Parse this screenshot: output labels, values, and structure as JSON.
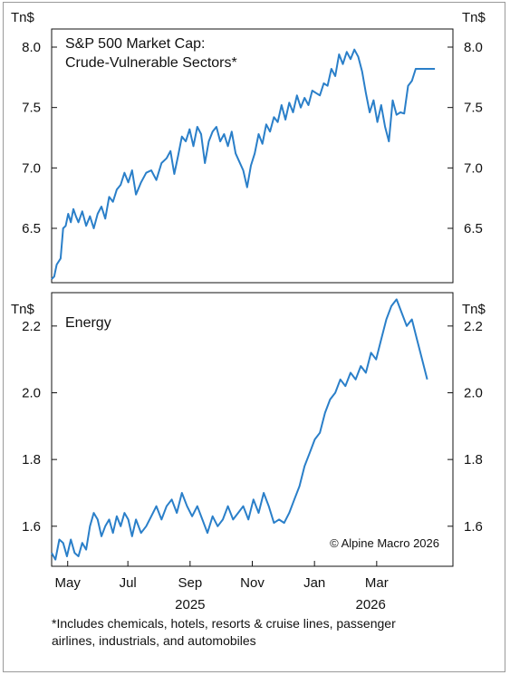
{
  "chart_data": [
    {
      "type": "line",
      "title": "S&P 500 Market Cap:",
      "subtitle": "Crude-Vulnerable Sectors*",
      "unit_left": "Tn$",
      "unit_right": "Tn$",
      "ylim": [
        6.05,
        8.15
      ],
      "yticks": [
        {
          "value": 6.5,
          "label": "6.5"
        },
        {
          "value": 7.0,
          "label": "7.0"
        },
        {
          "value": 7.5,
          "label": "7.5"
        },
        {
          "value": 8.0,
          "label": "8.0"
        }
      ],
      "grid": false,
      "color": "#2a7fc9",
      "series": [
        {
          "x": [
            0,
            2,
            4,
            7,
            9,
            11,
            13,
            15,
            17,
            19,
            21,
            24,
            27,
            30,
            33,
            36,
            39,
            42,
            45,
            48,
            51,
            54,
            57,
            60,
            63,
            66,
            70,
            74,
            78,
            82,
            86,
            90,
            93,
            96,
            99,
            102,
            105,
            108,
            111,
            114,
            117,
            120,
            123,
            126,
            129,
            132,
            135,
            138,
            141,
            144,
            147,
            150,
            153,
            156,
            159,
            162,
            165,
            168,
            171,
            174,
            177,
            180,
            183,
            186,
            189,
            192,
            195,
            198,
            201,
            204,
            207,
            210,
            213,
            216,
            219,
            222,
            225,
            228,
            231,
            234,
            237,
            240,
            243,
            246,
            249,
            252,
            255,
            258,
            261,
            264,
            267,
            270,
            273,
            276,
            279,
            282,
            285,
            288,
            291,
            294,
            297,
            300
          ],
          "y": [
            6.08,
            6.1,
            6.2,
            6.25,
            6.5,
            6.52,
            6.62,
            6.55,
            6.66,
            6.6,
            6.55,
            6.64,
            6.52,
            6.6,
            6.5,
            6.62,
            6.68,
            6.58,
            6.76,
            6.72,
            6.82,
            6.86,
            6.96,
            6.88,
            6.98,
            6.78,
            6.88,
            6.96,
            6.98,
            6.9,
            7.04,
            7.08,
            7.14,
            6.95,
            7.1,
            7.26,
            7.22,
            7.32,
            7.18,
            7.34,
            7.28,
            7.04,
            7.22,
            7.3,
            7.34,
            7.22,
            7.28,
            7.18,
            7.3,
            7.12,
            7.05,
            6.98,
            6.84,
            7.02,
            7.12,
            7.28,
            7.2,
            7.36,
            7.3,
            7.42,
            7.38,
            7.52,
            7.4,
            7.54,
            7.46,
            7.6,
            7.5,
            7.58,
            7.52,
            7.64,
            7.62,
            7.6,
            7.7,
            7.68,
            7.82,
            7.76,
            7.94,
            7.86,
            7.96,
            7.9,
            7.98,
            7.92,
            7.8,
            7.62,
            7.46,
            7.56,
            7.38,
            7.52,
            7.34,
            7.22,
            7.56,
            7.44,
            7.46,
            7.45,
            7.68,
            7.72,
            7.82,
            7.82,
            7.82,
            7.82,
            7.82,
            7.82
          ]
        }
      ]
    },
    {
      "type": "line",
      "title": "Energy",
      "unit_left": "Tn$",
      "unit_right": "Tn$",
      "ylim": [
        1.48,
        2.3
      ],
      "yticks": [
        {
          "value": 1.6,
          "label": "1.6"
        },
        {
          "value": 1.8,
          "label": "1.8"
        },
        {
          "value": 2.0,
          "label": "2.0"
        },
        {
          "value": 2.2,
          "label": "2.2"
        }
      ],
      "grid": false,
      "color": "#2a7fc9",
      "annotation": "© Alpine Macro 2026",
      "series": [
        {
          "x": [
            0,
            3,
            6,
            9,
            12,
            15,
            18,
            21,
            24,
            27,
            30,
            33,
            36,
            39,
            42,
            45,
            48,
            51,
            54,
            57,
            60,
            63,
            66,
            70,
            74,
            78,
            82,
            86,
            90,
            94,
            98,
            102,
            106,
            110,
            114,
            118,
            122,
            126,
            130,
            134,
            138,
            142,
            146,
            150,
            154,
            158,
            162,
            166,
            170,
            174,
            178,
            182,
            186,
            190,
            194,
            198,
            202,
            206,
            210,
            214,
            218,
            222,
            226,
            230,
            234,
            238,
            242,
            246,
            250,
            254,
            258,
            262,
            266,
            270,
            274,
            278,
            282,
            286,
            290,
            294
          ],
          "y": [
            1.52,
            1.5,
            1.56,
            1.55,
            1.51,
            1.56,
            1.52,
            1.51,
            1.55,
            1.53,
            1.6,
            1.64,
            1.62,
            1.57,
            1.6,
            1.62,
            1.58,
            1.63,
            1.6,
            1.64,
            1.62,
            1.57,
            1.62,
            1.58,
            1.6,
            1.63,
            1.66,
            1.62,
            1.66,
            1.68,
            1.64,
            1.7,
            1.66,
            1.63,
            1.66,
            1.62,
            1.58,
            1.63,
            1.6,
            1.62,
            1.66,
            1.62,
            1.64,
            1.66,
            1.62,
            1.68,
            1.64,
            1.7,
            1.66,
            1.61,
            1.62,
            1.61,
            1.64,
            1.68,
            1.72,
            1.78,
            1.82,
            1.86,
            1.88,
            1.94,
            1.98,
            2.0,
            2.04,
            2.02,
            2.06,
            2.04,
            2.08,
            2.06,
            2.12,
            2.1,
            2.16,
            2.22,
            2.26,
            2.28,
            2.24,
            2.2,
            2.22,
            2.16,
            2.1,
            2.04
          ]
        }
      ]
    }
  ],
  "x_axis": {
    "months": [
      {
        "label": "May",
        "pos": 0.04
      },
      {
        "label": "Jul",
        "pos": 0.19
      },
      {
        "label": "Sep",
        "pos": 0.345
      },
      {
        "label": "Nov",
        "pos": 0.5
      },
      {
        "label": "Jan",
        "pos": 0.655
      },
      {
        "label": "Mar",
        "pos": 0.81
      }
    ],
    "years": [
      {
        "label": "2025",
        "pos": 0.345
      },
      {
        "label": "2026",
        "pos": 0.795
      }
    ]
  },
  "footnote_line1": "*Includes chemicals, hotels, resorts & cruise lines, passenger",
  "footnote_line2": "airlines, industrials, and automobiles"
}
